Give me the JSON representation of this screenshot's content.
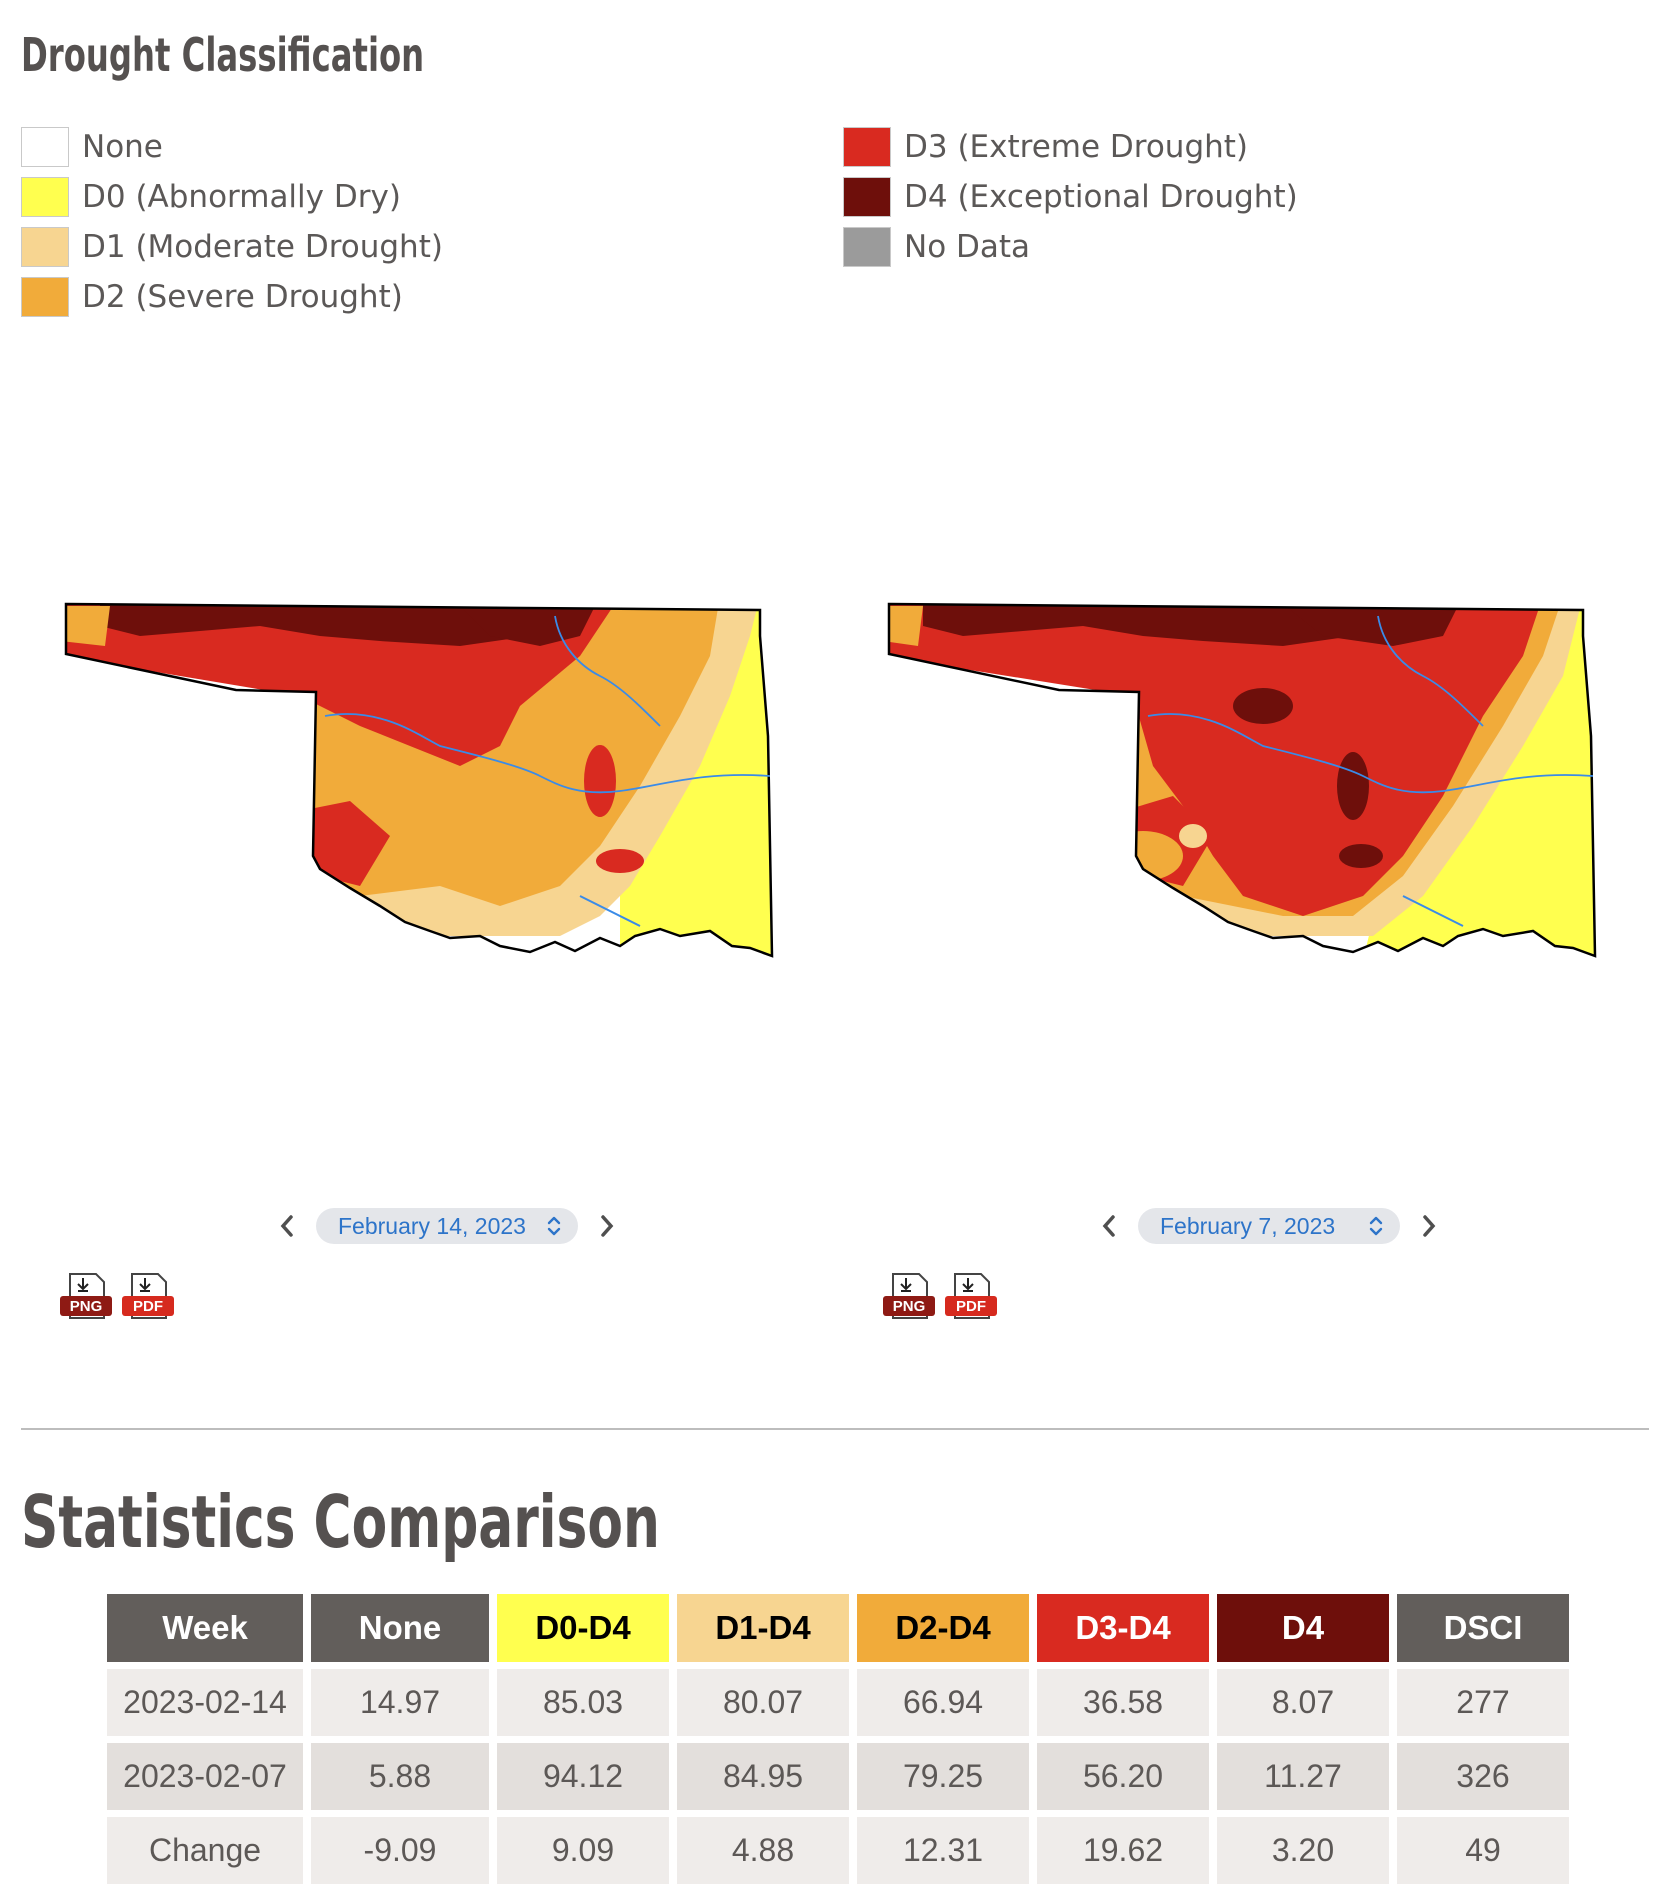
{
  "legend": {
    "title": "Drought Classification",
    "items": [
      {
        "label": "None",
        "color": "#ffffff"
      },
      {
        "label": "D0 (Abnormally Dry)",
        "color": "#ffff4f"
      },
      {
        "label": "D1 (Moderate Drought)",
        "color": "#f7d591"
      },
      {
        "label": "D2 (Severe Drought)",
        "color": "#f1ab3a"
      },
      {
        "label": "D3 (Extreme Drought)",
        "color": "#d92a20"
      },
      {
        "label": "D4 (Exceptional Drought)",
        "color": "#6e0f0b"
      },
      {
        "label": "No Data",
        "color": "#9b9b9b"
      }
    ]
  },
  "maps": [
    {
      "date": "February 14, 2023",
      "png_label": "PNG",
      "pdf_label": "PDF"
    },
    {
      "date": "February 7, 2023",
      "png_label": "PNG",
      "pdf_label": "PDF"
    }
  ],
  "stats": {
    "title": "Statistics Comparison",
    "headers": [
      {
        "label": "Week",
        "bg": "#625e5b",
        "fg": "#ffffff"
      },
      {
        "label": "None",
        "bg": "#625e5b",
        "fg": "#ffffff"
      },
      {
        "label": "D0-D4",
        "bg": "#ffff4f",
        "fg": "#000000"
      },
      {
        "label": "D1-D4",
        "bg": "#f7d591",
        "fg": "#000000"
      },
      {
        "label": "D2-D4",
        "bg": "#f1ab3a",
        "fg": "#000000"
      },
      {
        "label": "D3-D4",
        "bg": "#d92a20",
        "fg": "#ffffff"
      },
      {
        "label": "D4",
        "bg": "#6e0f0b",
        "fg": "#ffffff"
      },
      {
        "label": "DSCI",
        "bg": "#625e5b",
        "fg": "#ffffff"
      }
    ],
    "rows": [
      [
        "2023-02-14",
        "14.97",
        "85.03",
        "80.07",
        "66.94",
        "36.58",
        "8.07",
        "277"
      ],
      [
        "2023-02-07",
        "5.88",
        "94.12",
        "84.95",
        "79.25",
        "56.20",
        "11.27",
        "326"
      ],
      [
        "Change",
        "-9.09",
        "9.09",
        "4.88",
        "12.31",
        "19.62",
        "3.20",
        "49"
      ]
    ]
  }
}
